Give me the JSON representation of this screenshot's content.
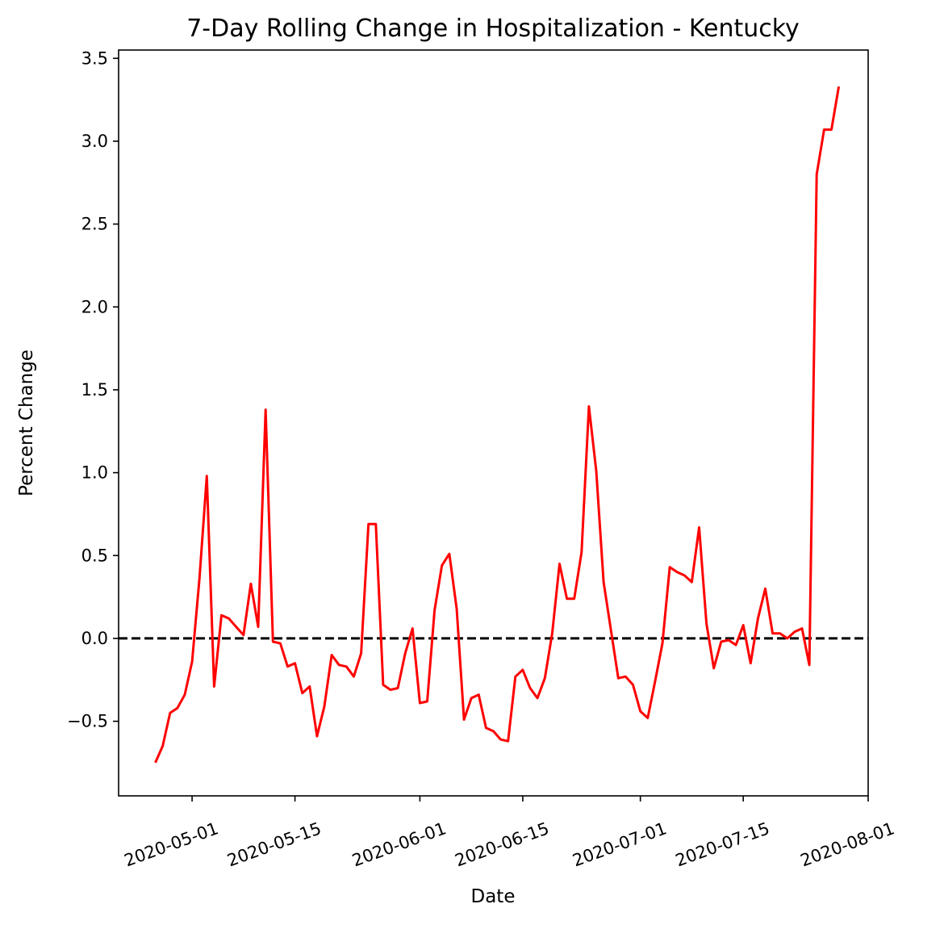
{
  "chart_data": {
    "type": "line",
    "title": "7-Day Rolling Change in Hospitalization - Kentucky",
    "xlabel": "Date",
    "ylabel": "Percent Change",
    "x_ticks": [
      "2020-05-01",
      "2020-05-15",
      "2020-06-01",
      "2020-06-15",
      "2020-07-01",
      "2020-07-15",
      "2020-08-01"
    ],
    "y_ticks": [
      -0.5,
      0.0,
      0.5,
      1.0,
      1.5,
      2.0,
      2.5,
      3.0,
      3.5
    ],
    "y_tick_labels": [
      "−0.5",
      "0.0",
      "0.5",
      "1.0",
      "1.5",
      "2.0",
      "2.5",
      "3.0",
      "3.5"
    ],
    "xlim": [
      "2020-04-21",
      "2020-08-01"
    ],
    "ylim": [
      -0.95,
      3.55
    ],
    "grid": false,
    "reference_line": {
      "y": 0.0,
      "style": "dashed",
      "color": "#000000"
    },
    "series": [
      {
        "color": "#ff0000",
        "x": [
          "2020-04-26",
          "2020-04-27",
          "2020-04-28",
          "2020-04-29",
          "2020-04-30",
          "2020-05-01",
          "2020-05-02",
          "2020-05-03",
          "2020-05-04",
          "2020-05-05",
          "2020-05-06",
          "2020-05-07",
          "2020-05-08",
          "2020-05-09",
          "2020-05-10",
          "2020-05-11",
          "2020-05-12",
          "2020-05-13",
          "2020-05-14",
          "2020-05-15",
          "2020-05-16",
          "2020-05-17",
          "2020-05-18",
          "2020-05-19",
          "2020-05-20",
          "2020-05-21",
          "2020-05-22",
          "2020-05-23",
          "2020-05-24",
          "2020-05-25",
          "2020-05-26",
          "2020-05-27",
          "2020-05-28",
          "2020-05-29",
          "2020-05-30",
          "2020-05-31",
          "2020-06-01",
          "2020-06-02",
          "2020-06-03",
          "2020-06-04",
          "2020-06-05",
          "2020-06-06",
          "2020-06-07",
          "2020-06-08",
          "2020-06-09",
          "2020-06-10",
          "2020-06-11",
          "2020-06-12",
          "2020-06-13",
          "2020-06-14",
          "2020-06-15",
          "2020-06-16",
          "2020-06-17",
          "2020-06-18",
          "2020-06-19",
          "2020-06-20",
          "2020-06-21",
          "2020-06-22",
          "2020-06-23",
          "2020-06-24",
          "2020-06-25",
          "2020-06-26",
          "2020-06-27",
          "2020-06-28",
          "2020-06-29",
          "2020-06-30",
          "2020-07-01",
          "2020-07-02",
          "2020-07-03",
          "2020-07-04",
          "2020-07-05",
          "2020-07-06",
          "2020-07-07",
          "2020-07-08",
          "2020-07-09",
          "2020-07-10",
          "2020-07-11",
          "2020-07-12",
          "2020-07-13",
          "2020-07-14",
          "2020-07-15",
          "2020-07-16",
          "2020-07-17",
          "2020-07-18",
          "2020-07-19",
          "2020-07-20",
          "2020-07-21",
          "2020-07-22",
          "2020-07-23",
          "2020-07-24",
          "2020-07-25",
          "2020-07-26",
          "2020-07-27",
          "2020-07-28"
        ],
        "values": [
          -0.75,
          -0.65,
          -0.45,
          -0.42,
          -0.34,
          -0.14,
          0.36,
          0.98,
          -0.29,
          0.14,
          0.12,
          0.07,
          0.02,
          0.33,
          0.07,
          1.38,
          -0.02,
          -0.03,
          -0.17,
          -0.15,
          -0.33,
          -0.29,
          -0.59,
          -0.41,
          -0.1,
          -0.16,
          -0.17,
          -0.23,
          -0.09,
          0.69,
          0.69,
          -0.28,
          -0.31,
          -0.3,
          -0.09,
          0.06,
          -0.39,
          -0.38,
          0.17,
          0.44,
          0.51,
          0.18,
          -0.49,
          -0.36,
          -0.34,
          -0.54,
          -0.56,
          -0.61,
          -0.62,
          -0.23,
          -0.19,
          -0.3,
          -0.36,
          -0.24,
          0.03,
          0.45,
          0.24,
          0.24,
          0.52,
          1.4,
          1.01,
          0.34,
          0.05,
          -0.24,
          -0.23,
          -0.28,
          -0.44,
          -0.48,
          -0.26,
          -0.03,
          0.43,
          0.4,
          0.38,
          0.34,
          0.67,
          0.09,
          -0.18,
          -0.02,
          -0.01,
          -0.04,
          0.08,
          -0.15,
          0.12,
          0.3,
          0.03,
          0.03,
          0.0,
          0.04,
          0.06,
          -0.16,
          2.8,
          3.07,
          3.07,
          3.33
        ]
      }
    ]
  }
}
